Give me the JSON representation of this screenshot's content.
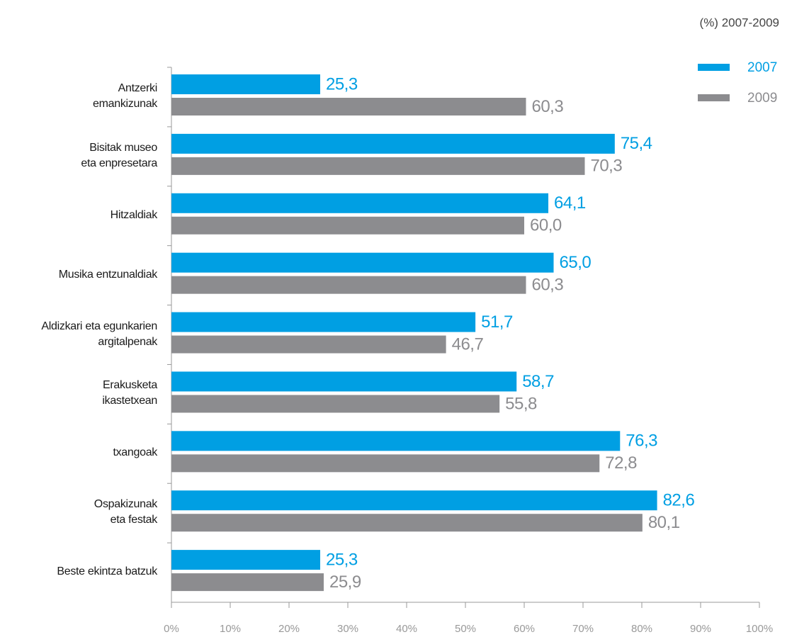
{
  "chart_data": {
    "type": "bar",
    "orientation": "horizontal",
    "title": "(%) 2007-2009",
    "categories": [
      "Antzerki\nemankizunak",
      "Bisitak museo\neta enpresetara",
      "Hitzaldiak",
      "Musika entzunaldiak",
      "Aldizkari eta egunkarien\nargitalpenak",
      "Erakusketa\nikastetxean",
      "txangoak",
      "Ospakizunak\neta festak",
      "Beste ekintza batzuk"
    ],
    "series": [
      {
        "name": "2007",
        "color": "#009fe3",
        "values": [
          25.3,
          75.4,
          64.1,
          65.0,
          51.7,
          58.7,
          76.3,
          82.6,
          25.3
        ],
        "value_labels": [
          "25,3",
          "75,4",
          "64,1",
          "65,0",
          "51,7",
          "58,7",
          "76,3",
          "82,6",
          "25,3"
        ]
      },
      {
        "name": "2009",
        "color": "#8c8c8f",
        "values": [
          60.3,
          70.3,
          60.0,
          60.3,
          46.7,
          55.8,
          72.8,
          80.1,
          25.9
        ],
        "value_labels": [
          "60,3",
          "70,3",
          "60,0",
          "60,3",
          "46,7",
          "55,8",
          "72,8",
          "80,1",
          "25,9"
        ]
      }
    ],
    "xlim": [
      0,
      100
    ],
    "xticks": [
      {
        "value": 0,
        "label": "0%"
      },
      {
        "value": 10,
        "label": "10%"
      },
      {
        "value": 20,
        "label": "20%"
      },
      {
        "value": 30,
        "label": "30%"
      },
      {
        "value": 40,
        "label": "40%"
      },
      {
        "value": 50,
        "label": "50%"
      },
      {
        "value": 60,
        "label": "60%"
      },
      {
        "value": 70,
        "label": "70%"
      },
      {
        "value": 80,
        "label": "80%"
      },
      {
        "value": 90,
        "label": "90%"
      },
      {
        "value": 100,
        "label": "100%"
      }
    ],
    "legend": "top-right"
  }
}
